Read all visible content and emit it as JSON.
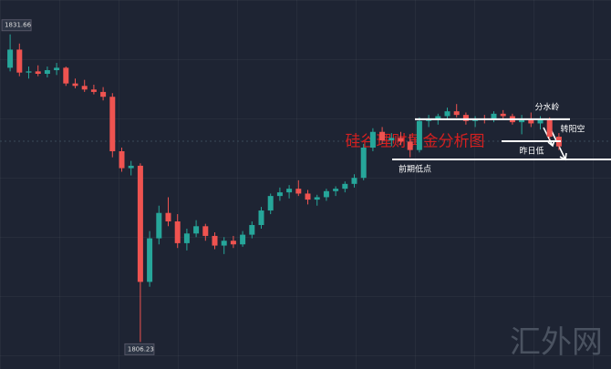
{
  "chart_data": {
    "type": "candlestick",
    "title": "硅谷理财黄金分析图",
    "watermark": "汇外网",
    "categories": [
      null,
      null,
      null,
      null,
      null,
      null,
      null,
      null,
      null,
      null,
      null,
      null,
      null,
      null,
      null,
      null,
      null,
      null,
      null,
      null,
      null,
      null,
      null,
      null,
      null,
      null,
      null,
      null,
      null,
      null,
      null,
      null,
      null,
      null,
      null,
      null,
      null,
      null,
      null,
      null,
      null,
      null,
      null,
      null,
      null,
      null,
      null,
      null,
      null,
      null,
      null,
      null,
      null,
      null,
      null,
      null,
      null,
      null,
      null,
      null
    ],
    "open": [
      1828.9,
      1830.4,
      1828.5,
      1828.6,
      1828.4,
      1828.7,
      1828.9,
      1827.6,
      1827.4,
      1827.1,
      1826.9,
      1826.5,
      1822.0,
      1820.6,
      1820.8,
      1811.2,
      1814.8,
      1816.9,
      1816.2,
      1814.4,
      1815.2,
      1815.8,
      1815.0,
      1814.2,
      1814.6,
      1814.3,
      1815.1,
      1815.9,
      1817.1,
      1818.3,
      1818.6,
      1818.9,
      1818.5,
      1818.0,
      1818.2,
      1818.7,
      1818.9,
      1819.3,
      1819.8,
      1822.3,
      1823.6,
      1822.9,
      1823.1,
      1822.8,
      1822.1,
      1824.5,
      1824.6,
      1824.9,
      1825.3,
      1825.0,
      1824.5,
      1824.7,
      1824.6,
      1825.1,
      1824.9,
      1824.4,
      1824.7,
      1824.3,
      1824.6,
      1823.2
    ],
    "high": [
      1831.66,
      1830.9,
      1829.0,
      1829.1,
      1829.0,
      1829.3,
      1829.0,
      1828.0,
      1827.9,
      1827.5,
      1827.3,
      1826.8,
      1822.3,
      1821.2,
      1821.0,
      1815.4,
      1817.5,
      1818.2,
      1816.8,
      1815.6,
      1816.3,
      1816.0,
      1815.3,
      1814.9,
      1815.0,
      1815.4,
      1816.2,
      1817.4,
      1818.5,
      1819.0,
      1819.2,
      1819.6,
      1818.8,
      1818.4,
      1818.9,
      1819.1,
      1819.5,
      1820.1,
      1822.6,
      1823.9,
      1824.0,
      1823.5,
      1823.6,
      1823.4,
      1824.8,
      1825.0,
      1825.1,
      1825.6,
      1825.9,
      1825.2,
      1824.9,
      1825.0,
      1825.3,
      1825.4,
      1825.1,
      1825.0,
      1825.2,
      1824.9,
      1824.8,
      1823.5
    ],
    "low": [
      1828.6,
      1828.2,
      1828.0,
      1828.2,
      1828.1,
      1828.3,
      1827.4,
      1827.2,
      1826.9,
      1826.7,
      1826.2,
      1821.5,
      1820.3,
      1820.0,
      1806.23,
      1810.8,
      1814.3,
      1815.8,
      1814.0,
      1813.8,
      1814.9,
      1814.6,
      1813.9,
      1813.5,
      1814.0,
      1814.1,
      1814.8,
      1815.6,
      1816.8,
      1817.9,
      1818.1,
      1818.3,
      1817.6,
      1817.5,
      1817.9,
      1818.3,
      1818.6,
      1819.0,
      1819.6,
      1822.0,
      1822.6,
      1822.4,
      1822.5,
      1821.5,
      1821.9,
      1824.0,
      1824.2,
      1824.6,
      1824.8,
      1824.2,
      1824.0,
      1824.3,
      1824.4,
      1824.6,
      1824.2,
      1823.4,
      1824.0,
      1823.8,
      1823.0,
      1822.1
    ],
    "close": [
      1830.4,
      1828.5,
      1828.6,
      1828.4,
      1828.7,
      1828.9,
      1827.6,
      1827.4,
      1827.1,
      1826.9,
      1826.5,
      1822.0,
      1820.6,
      1820.8,
      1811.2,
      1814.8,
      1816.9,
      1816.2,
      1814.4,
      1815.2,
      1815.8,
      1815.0,
      1814.2,
      1814.6,
      1814.3,
      1815.1,
      1815.9,
      1817.1,
      1818.3,
      1818.6,
      1818.9,
      1818.5,
      1818.0,
      1818.2,
      1818.7,
      1818.9,
      1819.3,
      1819.8,
      1822.3,
      1823.6,
      1822.9,
      1823.1,
      1822.8,
      1822.1,
      1824.5,
      1824.6,
      1824.9,
      1825.3,
      1825.0,
      1824.5,
      1824.7,
      1824.6,
      1825.1,
      1824.9,
      1824.4,
      1824.7,
      1824.3,
      1824.6,
      1823.2,
      1822.4
    ],
    "up_color": "#26a69a",
    "down_color": "#ef5350",
    "ylim": [
      1804.0,
      1834.5
    ],
    "price_labels": [
      {
        "value": 1831.66,
        "label": "1831.66",
        "index": 14
      },
      {
        "value": 1806.23,
        "label": "1806.23"
      }
    ],
    "annotations": [
      {
        "text": "分水岭",
        "value": 1824.64
      },
      {
        "text": "转阳空"
      },
      {
        "text": "昨日低",
        "value": 1822.83
      },
      {
        "text": "前期低点",
        "value": 1821.32
      }
    ]
  }
}
